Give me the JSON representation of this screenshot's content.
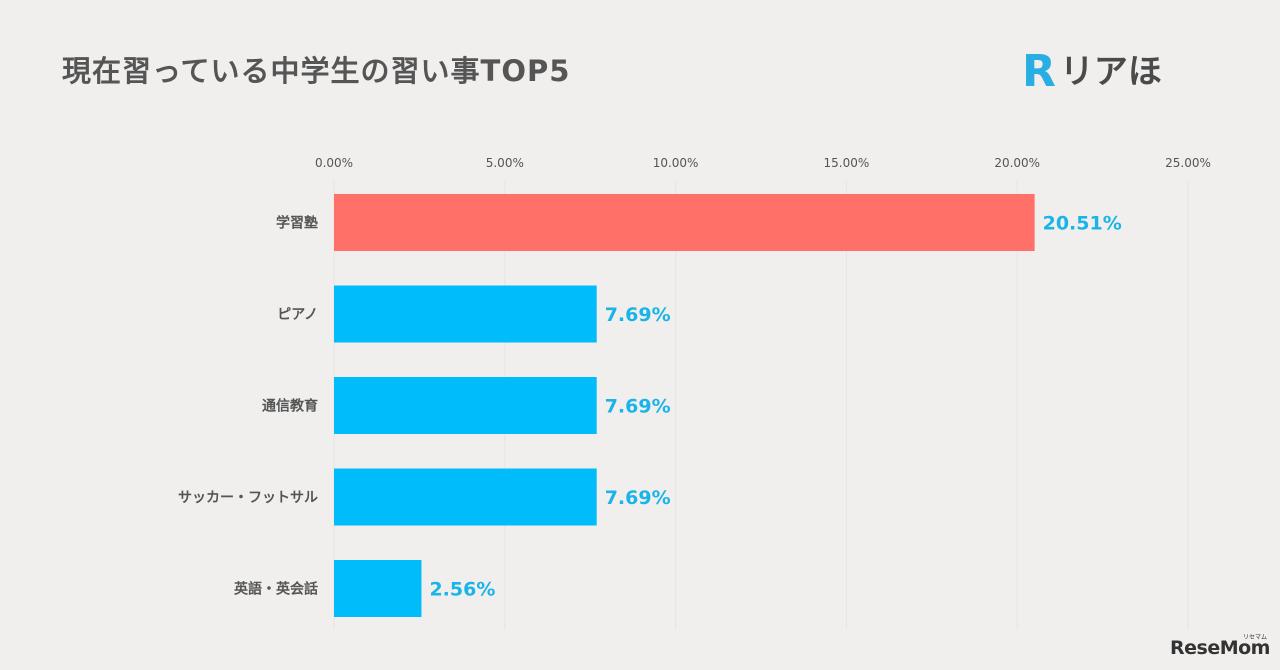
{
  "header": {
    "title": "現在習っている中学生の習い事TOP5",
    "logo_mark": "R",
    "logo_text": "リアほ"
  },
  "watermark": {
    "text": "ReseMom",
    "sub": "リセマム"
  },
  "chart_data": {
    "type": "bar",
    "orientation": "horizontal",
    "title": "現在習っている中学生の習い事TOP5",
    "categories": [
      "学習塾",
      "ピアノ",
      "通信教育",
      "サッカー・フットサル",
      "英語・英会話"
    ],
    "values": [
      20.51,
      7.69,
      7.69,
      7.69,
      2.56
    ],
    "value_labels": [
      "20.51%",
      "7.69%",
      "7.69%",
      "7.69%",
      "2.56%"
    ],
    "xlim": [
      0,
      25
    ],
    "xticks": [
      "0.00%",
      "5.00%",
      "10.00%",
      "15.00%",
      "20.00%",
      "25.00%"
    ],
    "xaxis_position": "top",
    "grid": true,
    "colors": {
      "highlight": "#ff7068",
      "default": "#00bcfb",
      "label": "#1ab4e8"
    }
  }
}
